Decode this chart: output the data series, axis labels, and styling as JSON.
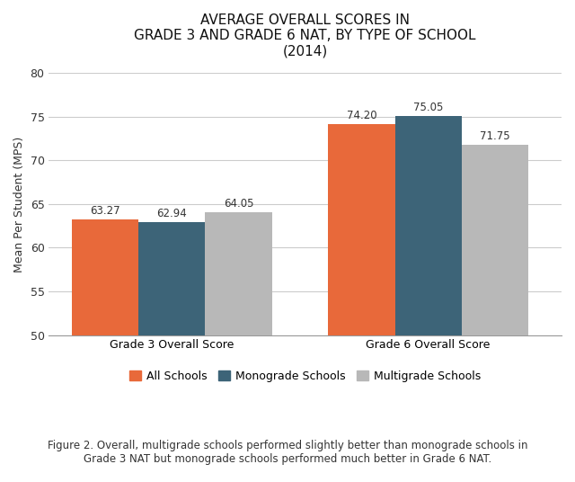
{
  "title_line1": "AVERAGE OVERALL SCORES IN",
  "title_line2": "GRADE 3 AND GRADE 6 NAT, BY TYPE OF SCHOOL",
  "title_line3": "(2014)",
  "categories": [
    "Grade 3 Overall Score",
    "Grade 6 Overall Score"
  ],
  "series": [
    {
      "label": "All Schools",
      "color": "#E8693A",
      "values": [
        63.27,
        74.2
      ]
    },
    {
      "label": "Monograde Schools",
      "color": "#3D6478",
      "values": [
        62.94,
        75.05
      ]
    },
    {
      "label": "Multigrade Schools",
      "color": "#B8B8B8",
      "values": [
        64.05,
        71.75
      ]
    }
  ],
  "ylim": [
    50,
    80
  ],
  "yticks": [
    50,
    55,
    60,
    65,
    70,
    75,
    80
  ],
  "ylabel": "Mean Per Student (MPS)",
  "caption_bold": "Figure 2.",
  "caption_normal": " Overall, multigrade schools performed slightly better than monograde schools in\nGrade 3 NAT but monograde schools performed much better in Grade 6 NAT.",
  "background_color": "#FFFFFF",
  "bar_width": 0.13,
  "title_fontsize": 11,
  "label_fontsize": 9,
  "tick_fontsize": 9,
  "ylabel_fontsize": 9,
  "legend_fontsize": 9,
  "caption_fontsize": 8.5,
  "value_fontsize": 8.5,
  "grid_color": "#CCCCCC",
  "spine_color": "#999999",
  "text_color": "#333333"
}
